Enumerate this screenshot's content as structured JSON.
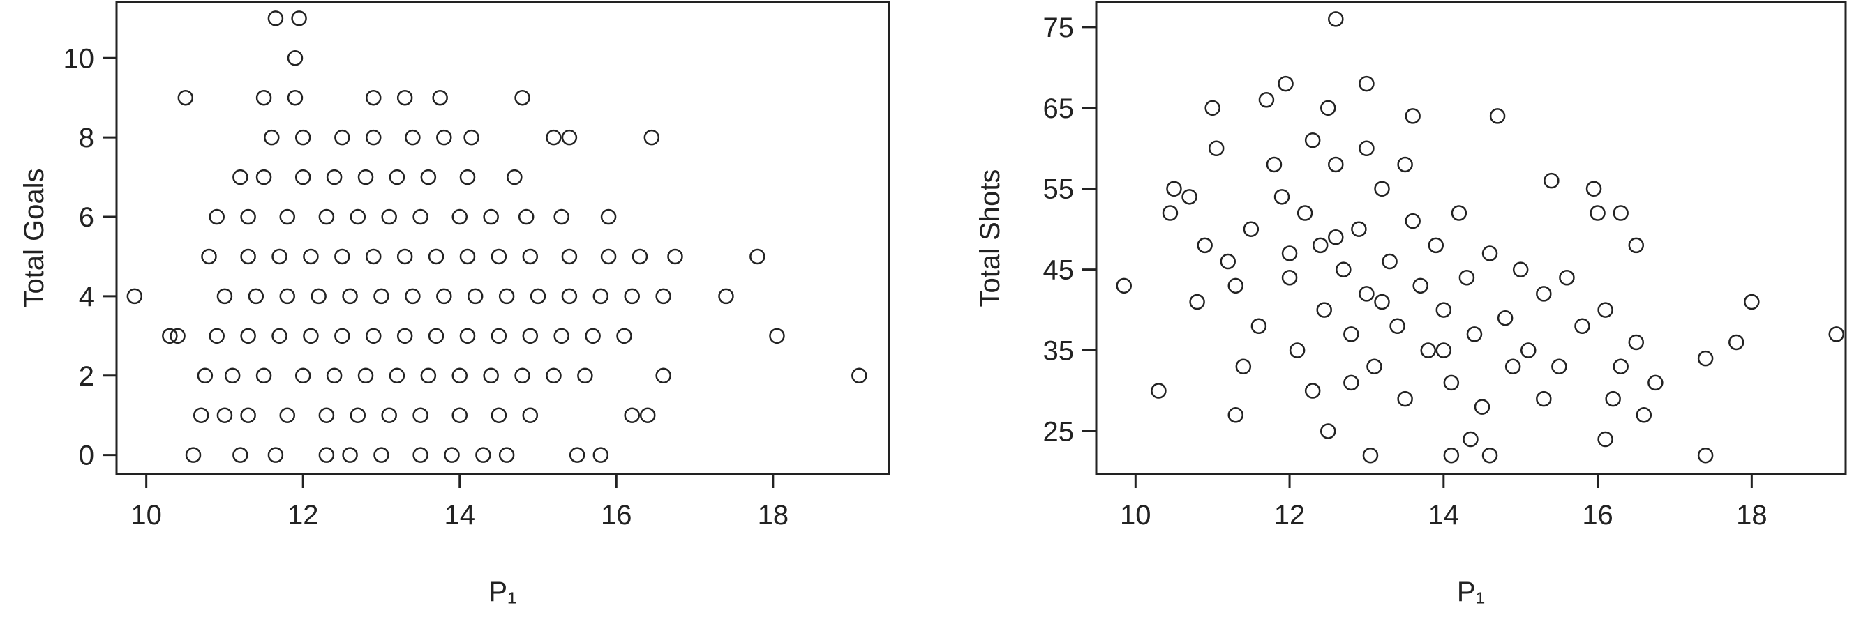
{
  "chart_data": [
    {
      "type": "scatter",
      "x_label": "P₁",
      "y_label": "Total Goals",
      "xlim": [
        9.62,
        19.48
      ],
      "ylim": [
        -0.48,
        11.41
      ],
      "xticks": [
        10,
        12,
        14,
        16,
        18
      ],
      "yticks": [
        0,
        2,
        4,
        6,
        8,
        10
      ],
      "color": "#222222",
      "x": [
        9.85,
        10.3,
        10.4,
        10.5,
        10.6,
        19.1,
        18.05,
        17.8,
        17.4,
        16.45,
        11.65,
        11.95,
        11.9,
        11.5,
        11.9,
        12.9,
        13.3,
        13.75,
        14.8,
        15.2,
        15.4,
        14.15,
        11.0,
        10.7,
        16.2,
        16.4,
        15.5,
        15.8,
        10.75,
        16.6,
        16.75,
        16.3,
        16.6,
        15.9,
        11.2,
        14.7,
        14.85,
        11.2,
        11.65,
        12.3,
        12.6,
        13.0,
        13.5,
        13.9,
        14.3,
        14.6,
        11.3,
        11.8,
        12.3,
        12.7,
        13.1,
        13.5,
        14.0,
        14.5,
        14.9,
        11.1,
        11.5,
        12.0,
        12.4,
        12.8,
        13.2,
        13.6,
        14.0,
        14.4,
        14.8,
        15.2,
        15.6,
        10.9,
        11.3,
        11.7,
        12.1,
        12.5,
        12.9,
        13.3,
        13.7,
        14.1,
        14.5,
        14.9,
        15.3,
        15.7,
        16.1,
        11.0,
        11.4,
        11.8,
        12.2,
        12.6,
        13.0,
        13.4,
        13.8,
        14.2,
        14.6,
        15.0,
        15.4,
        15.8,
        16.2,
        10.8,
        11.3,
        11.7,
        12.1,
        12.5,
        12.9,
        13.3,
        13.7,
        14.1,
        14.5,
        14.9,
        15.4,
        15.9,
        10.9,
        11.3,
        11.8,
        12.3,
        12.7,
        13.1,
        13.5,
        14.0,
        14.4,
        15.3,
        11.5,
        12.0,
        12.4,
        12.8,
        13.2,
        13.6,
        14.1,
        11.6,
        12.0,
        12.5,
        12.9,
        13.4,
        13.8
      ],
      "y": [
        4,
        3,
        3,
        9,
        0,
        2,
        3,
        5,
        4,
        8,
        11,
        11,
        10,
        9,
        9,
        9,
        9,
        9,
        9,
        8,
        8,
        8,
        1,
        1,
        1,
        1,
        0,
        0,
        2,
        2,
        5,
        5,
        4,
        6,
        7,
        7,
        6,
        0,
        0,
        0,
        0,
        0,
        0,
        0,
        0,
        0,
        1,
        1,
        1,
        1,
        1,
        1,
        1,
        1,
        1,
        2,
        2,
        2,
        2,
        2,
        2,
        2,
        2,
        2,
        2,
        2,
        2,
        3,
        3,
        3,
        3,
        3,
        3,
        3,
        3,
        3,
        3,
        3,
        3,
        3,
        3,
        4,
        4,
        4,
        4,
        4,
        4,
        4,
        4,
        4,
        4,
        4,
        4,
        4,
        4,
        5,
        5,
        5,
        5,
        5,
        5,
        5,
        5,
        5,
        5,
        5,
        5,
        5,
        6,
        6,
        6,
        6,
        6,
        6,
        6,
        6,
        6,
        6,
        7,
        7,
        7,
        7,
        7,
        7,
        7,
        8,
        8,
        8,
        8,
        8,
        8
      ]
    },
    {
      "type": "scatter",
      "x_label": "P₁",
      "y_label": "Total Shots",
      "xlim": [
        9.49,
        19.22
      ],
      "ylim": [
        19.69,
        78.1
      ],
      "xticks": [
        10,
        12,
        14,
        16,
        18
      ],
      "yticks": [
        25,
        35,
        45,
        55,
        65,
        75
      ],
      "color": "#222222",
      "x": [
        9.85,
        10.3,
        10.45,
        10.5,
        19.1,
        18.0,
        17.8,
        17.4,
        17.4,
        12.6,
        13.0,
        11.95,
        11.0,
        11.3,
        13.05,
        14.1,
        14.6,
        14.35,
        16.1,
        15.3,
        16.6,
        16.75,
        16.5,
        16.3,
        15.95,
        15.4,
        14.7,
        13.6,
        12.5,
        11.7,
        11.05,
        10.7,
        10.9,
        10.8,
        11.2,
        11.5,
        11.6,
        11.8,
        12.0,
        12.1,
        12.2,
        12.3,
        12.4,
        12.45,
        12.5,
        12.6,
        12.7,
        12.8,
        12.9,
        13.0,
        13.1,
        13.2,
        13.3,
        13.4,
        13.5,
        13.6,
        13.7,
        13.8,
        13.9,
        14.0,
        14.1,
        14.2,
        14.3,
        14.4,
        14.5,
        14.6,
        14.8,
        14.9,
        15.0,
        15.1,
        15.3,
        15.5,
        15.6,
        15.8,
        16.0,
        16.1,
        16.3,
        16.5,
        16.2,
        11.3,
        11.9,
        12.3,
        13.0,
        13.5,
        12.6,
        13.2,
        12.0,
        11.4,
        14.0,
        12.8
      ],
      "y": [
        43,
        30,
        52,
        55,
        37,
        41,
        36,
        34,
        22,
        76,
        68,
        68,
        65,
        27,
        22,
        22,
        22,
        24,
        24,
        29,
        27,
        31,
        48,
        52,
        55,
        56,
        64,
        64,
        65,
        66,
        60,
        54,
        48,
        41,
        46,
        50,
        38,
        58,
        44,
        35,
        52,
        30,
        48,
        40,
        25,
        58,
        45,
        37,
        50,
        42,
        33,
        55,
        46,
        38,
        29,
        51,
        43,
        35,
        48,
        40,
        31,
        52,
        44,
        37,
        28,
        47,
        39,
        33,
        45,
        35,
        42,
        33,
        44,
        38,
        52,
        40,
        33,
        36,
        29,
        43,
        54,
        61,
        60,
        58,
        49,
        41,
        47,
        33,
        35,
        31
      ]
    }
  ]
}
